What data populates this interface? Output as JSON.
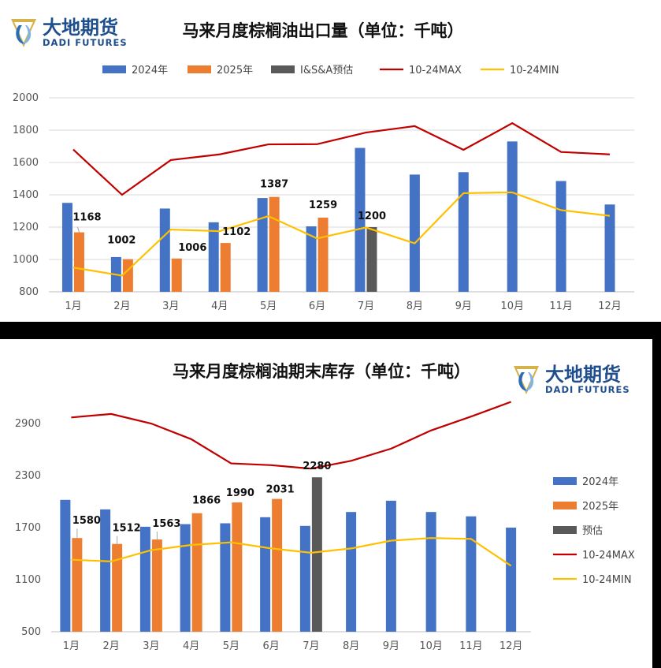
{
  "logo": {
    "cn": "大地期货",
    "en": "DADI FUTURES"
  },
  "colors": {
    "y2024": "#4472C4",
    "y2025": "#ED7D31",
    "forecast": "#595959",
    "max": "#C00000",
    "min": "#FFC000"
  },
  "chart_data": [
    {
      "type": "bar",
      "title": "马来月度棕榈油出口量（单位：千吨）",
      "categories": [
        "1月",
        "2月",
        "3月",
        "4月",
        "5月",
        "6月",
        "7月",
        "8月",
        "9月",
        "10月",
        "11月",
        "12月"
      ],
      "ylim": [
        800,
        2000
      ],
      "yticks": [
        800,
        1000,
        1200,
        1400,
        1600,
        1800,
        2000
      ],
      "legend_position": "top",
      "grid": true,
      "series": [
        {
          "name": "2024年",
          "kind": "bar",
          "values": [
            1350,
            1015,
            1315,
            1230,
            1380,
            1205,
            1690,
            1525,
            1540,
            1730,
            1485,
            1340
          ]
        },
        {
          "name": "2025年",
          "kind": "bar",
          "values": [
            1168,
            1002,
            1006,
            1102,
            1387,
            1259,
            null,
            null,
            null,
            null,
            null,
            null
          ],
          "labels": [
            "1168",
            "1002",
            "1006",
            "1102",
            "1387",
            "1259"
          ]
        },
        {
          "name": "I&S&A预估",
          "kind": "bar",
          "values": [
            null,
            null,
            null,
            null,
            null,
            null,
            1200,
            null,
            null,
            null,
            null,
            null
          ],
          "labels": [
            "1200"
          ]
        },
        {
          "name": "10-24MAX",
          "kind": "line",
          "values": [
            1680,
            1400,
            1615,
            1650,
            1712,
            1713,
            1785,
            1825,
            1678,
            1843,
            1665,
            1650
          ]
        },
        {
          "name": "10-24MIN",
          "kind": "line",
          "values": [
            950,
            900,
            1185,
            1175,
            1268,
            1130,
            1198,
            1100,
            1410,
            1415,
            1305,
            1270
          ]
        }
      ]
    },
    {
      "type": "bar",
      "title": "马来月度棕榈油期末库存（单位：千吨）",
      "categories": [
        "1月",
        "2月",
        "3月",
        "4月",
        "5月",
        "6月",
        "7月",
        "8月",
        "9月",
        "10月",
        "11月",
        "12月"
      ],
      "ylim": [
        500,
        3100
      ],
      "yticks": [
        500,
        1100,
        1700,
        2300,
        2900
      ],
      "legend_position": "right",
      "grid": false,
      "series": [
        {
          "name": "2024年",
          "kind": "bar",
          "values": [
            2020,
            1910,
            1710,
            1740,
            1750,
            1820,
            1720,
            1880,
            2010,
            1880,
            1830,
            1700
          ]
        },
        {
          "name": "2025年",
          "kind": "bar",
          "values": [
            1580,
            1512,
            1563,
            1866,
            1990,
            2031,
            null,
            null,
            null,
            null,
            null,
            null
          ],
          "labels": [
            "1580",
            "1512",
            "1563",
            "1866",
            "1990",
            "2031"
          ]
        },
        {
          "name": "预估",
          "kind": "bar",
          "values": [
            null,
            null,
            null,
            null,
            null,
            null,
            2280,
            null,
            null,
            null,
            null,
            null
          ],
          "labels": [
            "2280"
          ]
        },
        {
          "name": "10-24MAX",
          "kind": "line",
          "values": [
            2970,
            3010,
            2900,
            2720,
            2440,
            2420,
            2380,
            2470,
            2610,
            2820,
            2980,
            3150
          ]
        },
        {
          "name": "10-24MIN",
          "kind": "line",
          "values": [
            1330,
            1310,
            1440,
            1500,
            1530,
            1460,
            1410,
            1460,
            1550,
            1580,
            1570,
            1260
          ]
        }
      ]
    }
  ]
}
